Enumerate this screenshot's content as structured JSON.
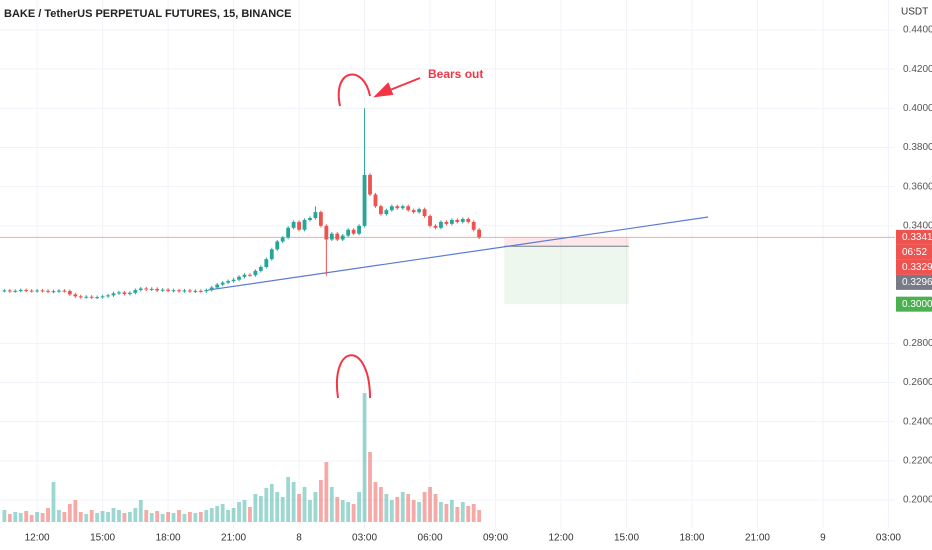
{
  "chart_data": {
    "type": "candlestick",
    "title": "BAKE / TetherUS PERPETUAL FUTURES, 15, BINANCE",
    "currency": "USDT",
    "annotation": "Bears out",
    "up_color": "#26a69a",
    "down_color": "#ef5350",
    "xlim": [
      10.3,
      51.3
    ],
    "xticks": [
      {
        "value": 12,
        "label": "12:00"
      },
      {
        "value": 15,
        "label": "15:00"
      },
      {
        "value": 18,
        "label": "18:00"
      },
      {
        "value": 21,
        "label": "21:00"
      },
      {
        "value": 24,
        "label": "8"
      },
      {
        "value": 27,
        "label": "03:00"
      },
      {
        "value": 30,
        "label": "06:00"
      },
      {
        "value": 33,
        "label": "09:00"
      },
      {
        "value": 36,
        "label": "12:00"
      },
      {
        "value": 39,
        "label": "15:00"
      },
      {
        "value": 42,
        "label": "18:00"
      },
      {
        "value": 45,
        "label": "21:00"
      },
      {
        "value": 48,
        "label": "9"
      },
      {
        "value": 51,
        "label": "03:00"
      }
    ],
    "ylim": [
      0.2,
      0.44
    ],
    "yticks": [
      {
        "value": 0.2,
        "label": "0.2000"
      },
      {
        "value": 0.22,
        "label": "0.2200"
      },
      {
        "value": 0.24,
        "label": "0.2400"
      },
      {
        "value": 0.26,
        "label": "0.2600"
      },
      {
        "value": 0.28,
        "label": "0.2800"
      },
      {
        "value": 0.34,
        "label": "0.3400"
      },
      {
        "value": 0.36,
        "label": "0.3600"
      },
      {
        "value": 0.38,
        "label": "0.3800"
      },
      {
        "value": 0.4,
        "label": "0.4000"
      },
      {
        "value": 0.42,
        "label": "0.4200"
      },
      {
        "value": 0.44,
        "label": "0.4400"
      }
    ],
    "x": [
      10.5,
      10.75,
      11,
      11.25,
      11.5,
      11.75,
      12,
      12.25,
      12.5,
      12.75,
      13,
      13.25,
      13.5,
      13.75,
      14,
      14.25,
      14.5,
      14.75,
      15,
      15.25,
      15.5,
      15.75,
      16,
      16.25,
      16.5,
      16.75,
      17,
      17.25,
      17.5,
      17.75,
      18,
      18.25,
      18.5,
      18.75,
      19,
      19.25,
      19.5,
      19.75,
      20,
      20.25,
      20.5,
      20.75,
      21,
      21.25,
      21.5,
      21.75,
      22,
      22.25,
      22.5,
      22.75,
      23,
      23.25,
      23.5,
      23.75,
      24,
      24.25,
      24.5,
      24.75,
      25,
      25.25,
      25.5,
      25.75,
      26,
      26.25,
      26.5,
      26.75,
      27,
      27.25,
      27.5,
      27.75,
      28,
      28.25,
      28.5,
      28.75,
      29,
      29.25,
      29.5,
      29.75,
      30,
      30.25,
      30.5,
      30.75,
      31,
      31.25,
      31.5,
      31.75,
      32,
      32.25
    ],
    "open": [
      0.3068,
      0.307,
      0.3066,
      0.3068,
      0.3072,
      0.3069,
      0.3067,
      0.307,
      0.3068,
      0.3064,
      0.3066,
      0.3069,
      0.3067,
      0.305,
      0.304,
      0.3036,
      0.3038,
      0.3034,
      0.3036,
      0.304,
      0.3045,
      0.3055,
      0.306,
      0.3052,
      0.3058,
      0.3072,
      0.308,
      0.3075,
      0.3078,
      0.307,
      0.3074,
      0.3068,
      0.3071,
      0.3066,
      0.307,
      0.3065,
      0.3068,
      0.3066,
      0.3072,
      0.3085,
      0.31,
      0.311,
      0.3118,
      0.3125,
      0.314,
      0.315,
      0.3148,
      0.317,
      0.319,
      0.323,
      0.328,
      0.332,
      0.334,
      0.339,
      0.342,
      0.338,
      0.343,
      0.344,
      0.347,
      0.34,
      0.333,
      0.336,
      0.333,
      0.335,
      0.338,
      0.336,
      0.34,
      0.366,
      0.356,
      0.35,
      0.346,
      0.348,
      0.35,
      0.349,
      0.35,
      0.348,
      0.347,
      0.3485,
      0.345,
      0.34,
      0.339,
      0.342,
      0.341,
      0.343,
      0.342,
      0.3435,
      0.342,
      0.338
    ],
    "high": [
      0.3078,
      0.3078,
      0.3076,
      0.308,
      0.308,
      0.3077,
      0.3078,
      0.3078,
      0.3076,
      0.3074,
      0.3077,
      0.3077,
      0.3075,
      0.3058,
      0.3048,
      0.3046,
      0.3046,
      0.3044,
      0.3048,
      0.3053,
      0.3063,
      0.3068,
      0.3068,
      0.3066,
      0.308,
      0.3088,
      0.3088,
      0.3086,
      0.3086,
      0.3082,
      0.3082,
      0.3079,
      0.3079,
      0.3078,
      0.3078,
      0.3076,
      0.3076,
      0.308,
      0.3093,
      0.3108,
      0.3118,
      0.3126,
      0.3133,
      0.3148,
      0.3158,
      0.3158,
      0.3178,
      0.3198,
      0.3238,
      0.3288,
      0.3328,
      0.3348,
      0.3398,
      0.3428,
      0.3428,
      0.3438,
      0.3448,
      0.35,
      0.3478,
      0.3408,
      0.3368,
      0.3368,
      0.3358,
      0.3388,
      0.3388,
      0.3408,
      0.4,
      0.3668,
      0.3568,
      0.3508,
      0.3488,
      0.3508,
      0.3508,
      0.3508,
      0.3508,
      0.3488,
      0.3493,
      0.3493,
      0.3458,
      0.3408,
      0.3428,
      0.3428,
      0.3438,
      0.3438,
      0.3443,
      0.3443,
      0.3428,
      0.3388
    ],
    "low": [
      0.306,
      0.3058,
      0.3058,
      0.306,
      0.3061,
      0.3059,
      0.3059,
      0.306,
      0.3056,
      0.3056,
      0.3058,
      0.3059,
      0.3042,
      0.3032,
      0.3028,
      0.3028,
      0.3026,
      0.3026,
      0.3028,
      0.3032,
      0.3037,
      0.3047,
      0.3044,
      0.3044,
      0.305,
      0.3064,
      0.3067,
      0.3067,
      0.3062,
      0.3062,
      0.306,
      0.306,
      0.3058,
      0.3058,
      0.3057,
      0.3057,
      0.3058,
      0.3058,
      0.3064,
      0.3077,
      0.3092,
      0.3102,
      0.311,
      0.3117,
      0.3132,
      0.314,
      0.314,
      0.3162,
      0.3182,
      0.3222,
      0.3272,
      0.3312,
      0.3332,
      0.3382,
      0.3372,
      0.3372,
      0.3422,
      0.3432,
      0.3392,
      0.3145,
      0.3322,
      0.3322,
      0.3322,
      0.3342,
      0.3352,
      0.3352,
      0.3392,
      0.3552,
      0.3492,
      0.3452,
      0.3452,
      0.3472,
      0.3482,
      0.3482,
      0.3472,
      0.3462,
      0.3462,
      0.3442,
      0.3392,
      0.3382,
      0.3382,
      0.3402,
      0.3402,
      0.3412,
      0.3412,
      0.3412,
      0.3372,
      0.3333
    ],
    "close": [
      0.307,
      0.3066,
      0.3068,
      0.3072,
      0.3069,
      0.3067,
      0.307,
      0.3068,
      0.3064,
      0.3066,
      0.3069,
      0.3067,
      0.305,
      0.304,
      0.3036,
      0.3038,
      0.3034,
      0.3036,
      0.304,
      0.3045,
      0.3055,
      0.306,
      0.3052,
      0.3058,
      0.3072,
      0.308,
      0.3075,
      0.3078,
      0.307,
      0.3074,
      0.3068,
      0.3071,
      0.3066,
      0.307,
      0.3065,
      0.3068,
      0.3066,
      0.3072,
      0.3085,
      0.31,
      0.311,
      0.3118,
      0.3125,
      0.314,
      0.315,
      0.3148,
      0.317,
      0.319,
      0.323,
      0.328,
      0.332,
      0.334,
      0.339,
      0.342,
      0.338,
      0.343,
      0.344,
      0.347,
      0.34,
      0.333,
      0.336,
      0.333,
      0.335,
      0.338,
      0.336,
      0.34,
      0.366,
      0.356,
      0.35,
      0.346,
      0.348,
      0.35,
      0.349,
      0.35,
      0.348,
      0.347,
      0.3485,
      0.345,
      0.34,
      0.339,
      0.342,
      0.341,
      0.343,
      0.342,
      0.3435,
      0.342,
      0.338,
      0.3341
    ],
    "volume_lim": [
      0,
      170
    ],
    "volume": [
      12,
      8,
      10,
      9,
      11,
      7,
      10,
      9,
      14,
      40,
      12,
      10,
      18,
      22,
      10,
      8,
      12,
      9,
      11,
      10,
      14,
      12,
      9,
      10,
      14,
      22,
      12,
      9,
      11,
      8,
      10,
      9,
      12,
      8,
      10,
      9,
      10,
      12,
      14,
      16,
      18,
      12,
      14,
      20,
      22,
      15,
      28,
      26,
      34,
      38,
      30,
      25,
      45,
      40,
      28,
      35,
      22,
      30,
      42,
      60,
      35,
      25,
      22,
      20,
      18,
      30,
      129,
      70,
      40,
      35,
      28,
      22,
      25,
      30,
      28,
      22,
      20,
      30,
      35,
      28,
      20,
      18,
      22,
      15,
      20,
      16,
      18,
      12
    ],
    "trendline": {
      "from": [
        19.83,
        0.3072
      ],
      "to": [
        42.74,
        0.3445
      ],
      "color": "#5b7bd5"
    },
    "position": {
      "x": [
        33.4,
        39.1
      ],
      "stop": 0.334,
      "entry": 0.3296,
      "target": 0.3
    },
    "price_tags": [
      {
        "value": 0.3341,
        "label": "0.3341",
        "color": "#ef5350"
      },
      {
        "label": "06:52",
        "color": "#ef5350"
      },
      {
        "value": 0.3329,
        "label": "0.3329",
        "color": "#ef5350"
      },
      {
        "value": 0.3296,
        "label": "0.3296",
        "color": "#787b86"
      },
      {
        "value": 0.3,
        "label": "0.3000",
        "color": "#4caf50"
      }
    ]
  }
}
